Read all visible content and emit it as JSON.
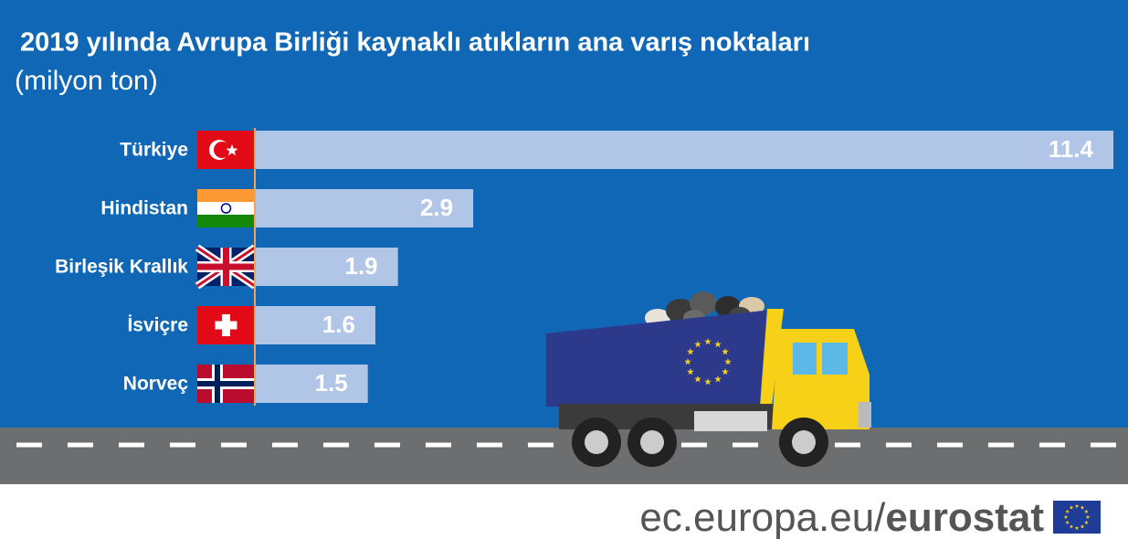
{
  "chart_data": {
    "type": "bar",
    "orientation": "horizontal",
    "title": "2019 yılında Avrupa Birliği kaynaklı atıkların ana varış noktaları",
    "subtitle": "(milyon ton)",
    "categories": [
      "Türkiye",
      "Hindistan",
      "Birleşik Krallık",
      "İsviçre",
      "Norveç"
    ],
    "values": [
      11.4,
      2.9,
      1.9,
      1.6,
      1.5
    ],
    "color": "#b1c5e6"
  },
  "footer": {
    "site": "ec.europa.eu/",
    "brand": "eurostat"
  }
}
